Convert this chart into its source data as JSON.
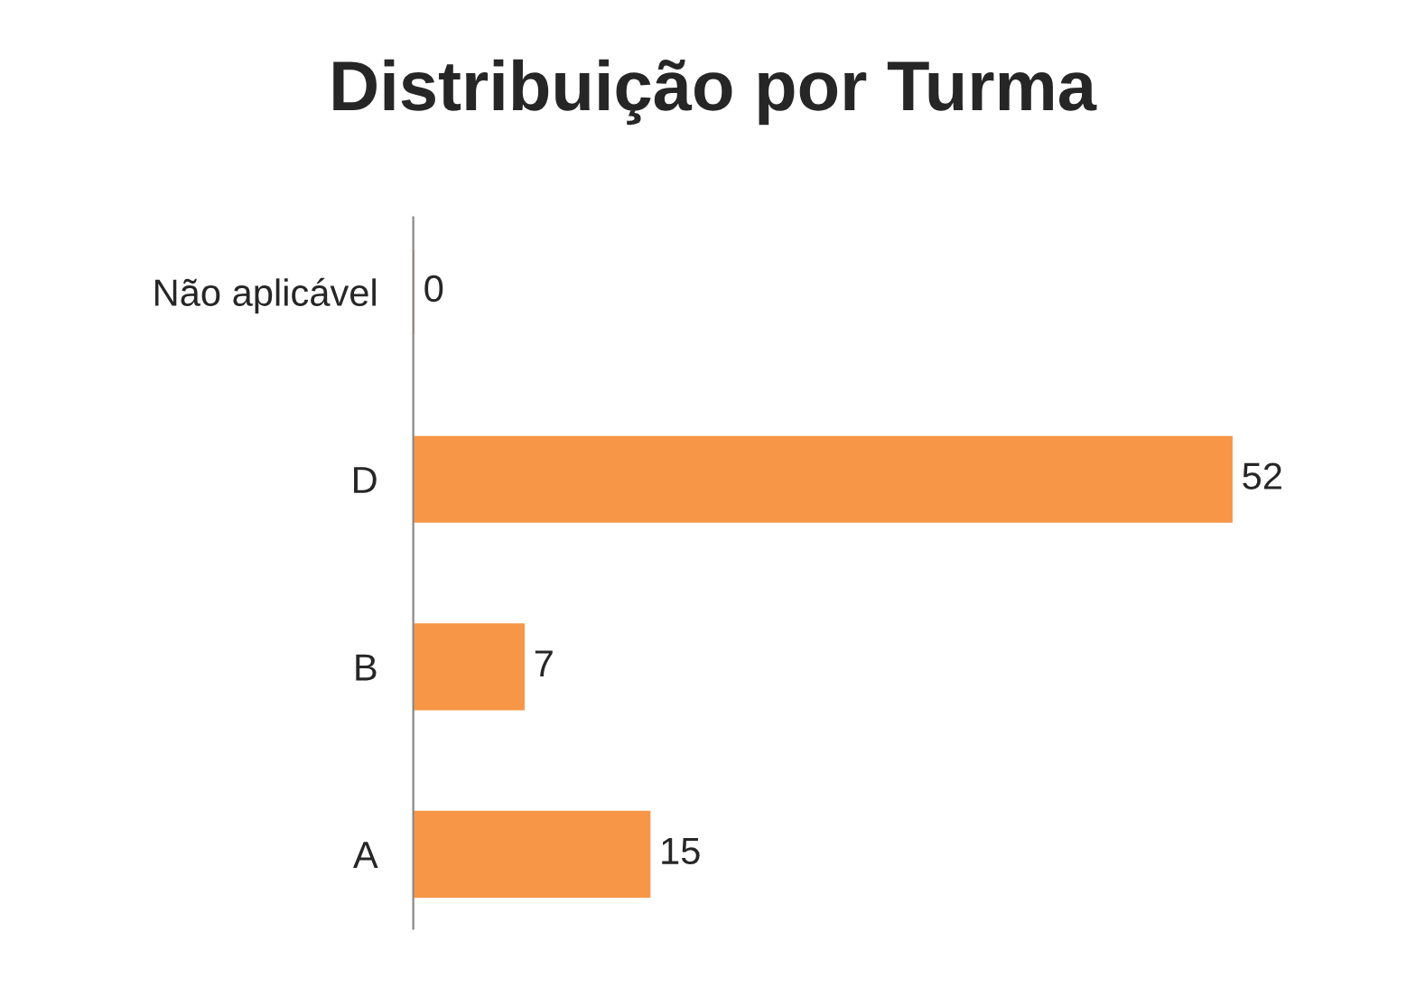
{
  "chart_data": {
    "type": "bar",
    "orientation": "horizontal",
    "title": "Distribuição por Turma",
    "categories": [
      "Não aplicável",
      "D",
      "B",
      "A"
    ],
    "values": [
      0,
      52,
      7,
      15
    ],
    "color": "#f79646",
    "data_labels": true
  }
}
